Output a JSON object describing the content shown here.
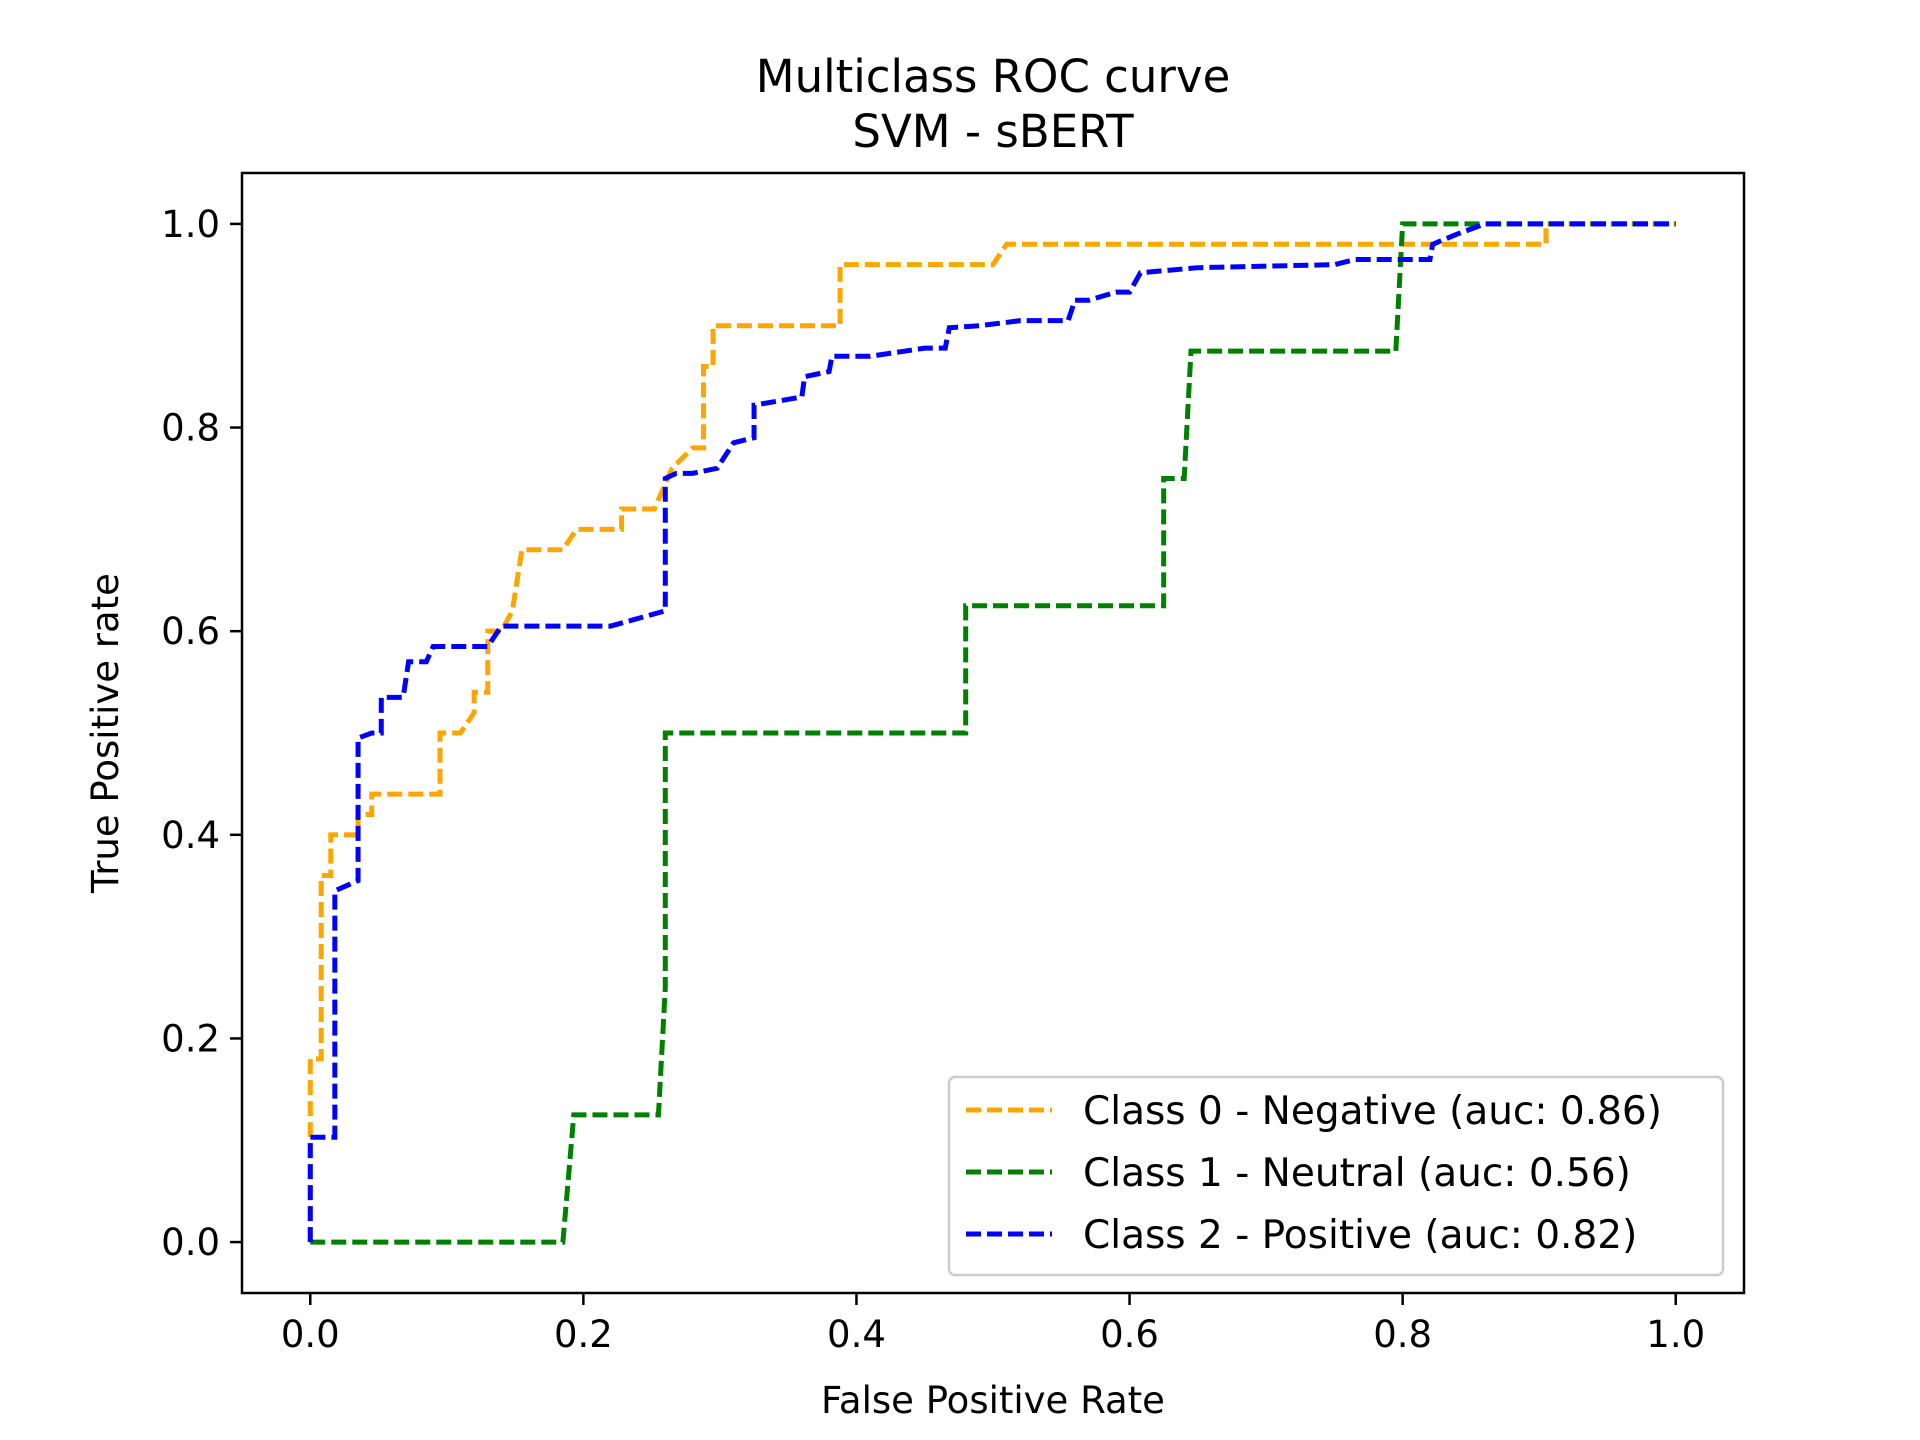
{
  "chart_data": {
    "type": "line",
    "title": "Multiclass ROC curve",
    "subtitle": "SVM - sBERT",
    "xlabel": "False Positive Rate",
    "ylabel": "True Positive rate",
    "xlim": [
      -0.05,
      1.05
    ],
    "ylim": [
      -0.05,
      1.05
    ],
    "xticks": [
      "0.0",
      "0.2",
      "0.4",
      "0.6",
      "0.8",
      "1.0"
    ],
    "yticks": [
      "0.0",
      "0.2",
      "0.4",
      "0.6",
      "0.8",
      "1.0"
    ],
    "grid": false,
    "legend_position": "lower-right",
    "line_style": "dashed",
    "series": [
      {
        "name": "Class 0 - Negative (auc: 0.86)",
        "color": "#FFA500",
        "points": [
          [
            0.0,
            0.0
          ],
          [
            0.0,
            0.1
          ],
          [
            0.0,
            0.18
          ],
          [
            0.008,
            0.18
          ],
          [
            0.008,
            0.36
          ],
          [
            0.015,
            0.36
          ],
          [
            0.015,
            0.4
          ],
          [
            0.035,
            0.4
          ],
          [
            0.035,
            0.42
          ],
          [
            0.045,
            0.42
          ],
          [
            0.045,
            0.44
          ],
          [
            0.095,
            0.44
          ],
          [
            0.095,
            0.5
          ],
          [
            0.11,
            0.5
          ],
          [
            0.12,
            0.52
          ],
          [
            0.12,
            0.54
          ],
          [
            0.13,
            0.54
          ],
          [
            0.13,
            0.6
          ],
          [
            0.14,
            0.6
          ],
          [
            0.148,
            0.62
          ],
          [
            0.155,
            0.68
          ],
          [
            0.185,
            0.68
          ],
          [
            0.195,
            0.7
          ],
          [
            0.228,
            0.7
          ],
          [
            0.228,
            0.72
          ],
          [
            0.252,
            0.72
          ],
          [
            0.265,
            0.76
          ],
          [
            0.28,
            0.78
          ],
          [
            0.288,
            0.78
          ],
          [
            0.288,
            0.86
          ],
          [
            0.295,
            0.86
          ],
          [
            0.295,
            0.9
          ],
          [
            0.388,
            0.9
          ],
          [
            0.388,
            0.96
          ],
          [
            0.5,
            0.96
          ],
          [
            0.51,
            0.98
          ],
          [
            0.61,
            0.98
          ],
          [
            0.905,
            0.98
          ],
          [
            0.905,
            1.0
          ],
          [
            1.0,
            1.0
          ]
        ]
      },
      {
        "name": "Class 1 - Neutral (auc: 0.56)",
        "color": "#008000",
        "points": [
          [
            0.0,
            0.0
          ],
          [
            0.185,
            0.0
          ],
          [
            0.193,
            0.125
          ],
          [
            0.255,
            0.125
          ],
          [
            0.26,
            0.25
          ],
          [
            0.26,
            0.5
          ],
          [
            0.48,
            0.5
          ],
          [
            0.48,
            0.625
          ],
          [
            0.625,
            0.625
          ],
          [
            0.625,
            0.75
          ],
          [
            0.64,
            0.75
          ],
          [
            0.645,
            0.875
          ],
          [
            0.795,
            0.875
          ],
          [
            0.8,
            1.0
          ],
          [
            1.0,
            1.0
          ]
        ]
      },
      {
        "name": "Class 2 - Positive (auc: 0.82)",
        "color": "#0000FF",
        "points": [
          [
            0.0,
            0.0
          ],
          [
            0.0,
            0.103
          ],
          [
            0.018,
            0.103
          ],
          [
            0.018,
            0.345
          ],
          [
            0.035,
            0.355
          ],
          [
            0.035,
            0.495
          ],
          [
            0.045,
            0.5
          ],
          [
            0.052,
            0.5
          ],
          [
            0.052,
            0.535
          ],
          [
            0.068,
            0.535
          ],
          [
            0.072,
            0.57
          ],
          [
            0.085,
            0.57
          ],
          [
            0.09,
            0.585
          ],
          [
            0.13,
            0.585
          ],
          [
            0.14,
            0.605
          ],
          [
            0.22,
            0.605
          ],
          [
            0.26,
            0.62
          ],
          [
            0.26,
            0.75
          ],
          [
            0.268,
            0.755
          ],
          [
            0.28,
            0.755
          ],
          [
            0.298,
            0.76
          ],
          [
            0.31,
            0.785
          ],
          [
            0.325,
            0.79
          ],
          [
            0.325,
            0.822
          ],
          [
            0.36,
            0.83
          ],
          [
            0.362,
            0.85
          ],
          [
            0.38,
            0.855
          ],
          [
            0.382,
            0.87
          ],
          [
            0.41,
            0.87
          ],
          [
            0.45,
            0.878
          ],
          [
            0.465,
            0.878
          ],
          [
            0.468,
            0.898
          ],
          [
            0.49,
            0.9
          ],
          [
            0.52,
            0.905
          ],
          [
            0.555,
            0.905
          ],
          [
            0.56,
            0.925
          ],
          [
            0.57,
            0.925
          ],
          [
            0.59,
            0.933
          ],
          [
            0.6,
            0.933
          ],
          [
            0.608,
            0.952
          ],
          [
            0.65,
            0.957
          ],
          [
            0.75,
            0.96
          ],
          [
            0.765,
            0.965
          ],
          [
            0.78,
            0.965
          ],
          [
            0.8,
            0.965
          ],
          [
            0.82,
            0.965
          ],
          [
            0.822,
            0.98
          ],
          [
            0.84,
            0.99
          ],
          [
            0.86,
            1.0
          ],
          [
            1.0,
            1.0
          ]
        ]
      }
    ]
  }
}
